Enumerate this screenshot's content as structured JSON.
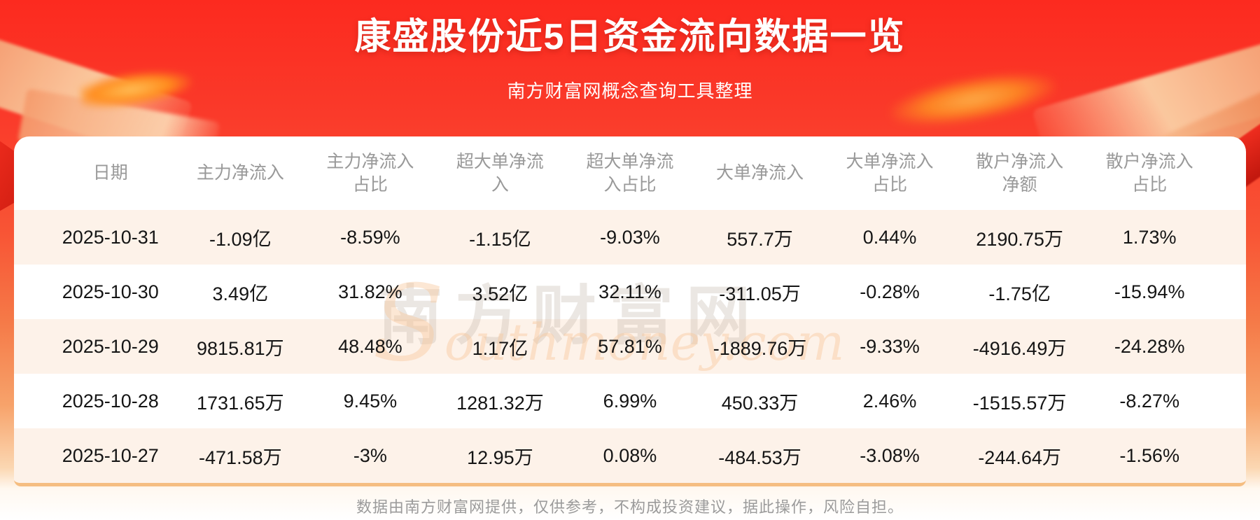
{
  "header": {
    "title": "康盛股份近5日资金流向数据一览",
    "subtitle": "南方财富网概念查询工具整理"
  },
  "watermark": {
    "cn": "南方财富网",
    "en": "Southmoney.com"
  },
  "footer": {
    "disclaimer": "数据由南方财富网提供，仅供参考，不构成投资建议，据此操作，风险自担。"
  },
  "colors": {
    "background_red_top": "#fc2a1f",
    "background_peach_bottom": "#f7a36b",
    "card_background": "#ffffff",
    "row_stripe": "#fdf2e9",
    "card_bottom_border": "#f5bd80",
    "header_text": "#999999",
    "body_text": "#151515",
    "title_text": "#ffffff"
  },
  "chart_data": {
    "type": "table",
    "title": "康盛股份近5日资金流向数据一览",
    "subtitle": "南方财富网概念查询工具整理",
    "columns": [
      "日期",
      "主力净流入",
      "主力净流入占比",
      "超大单净流入",
      "超大单净流入占比",
      "大单净流入",
      "大单净流入占比",
      "散户净流入净额",
      "散户净流入占比"
    ],
    "rows": [
      [
        "2025-10-31",
        "-1.09亿",
        "-8.59%",
        "-1.15亿",
        "-9.03%",
        "557.7万",
        "0.44%",
        "2190.75万",
        "1.73%"
      ],
      [
        "2025-10-30",
        "3.49亿",
        "31.82%",
        "3.52亿",
        "32.11%",
        "-311.05万",
        "-0.28%",
        "-1.75亿",
        "-15.94%"
      ],
      [
        "2025-10-29",
        "9815.81万",
        "48.48%",
        "1.17亿",
        "57.81%",
        "-1889.76万",
        "-9.33%",
        "-4916.49万",
        "-24.28%"
      ],
      [
        "2025-10-28",
        "1731.65万",
        "9.45%",
        "1281.32万",
        "6.99%",
        "450.33万",
        "2.46%",
        "-1515.57万",
        "-8.27%"
      ],
      [
        "2025-10-27",
        "-471.58万",
        "-3%",
        "12.95万",
        "0.08%",
        "-484.53万",
        "-3.08%",
        "-244.64万",
        "-1.56%"
      ]
    ]
  }
}
